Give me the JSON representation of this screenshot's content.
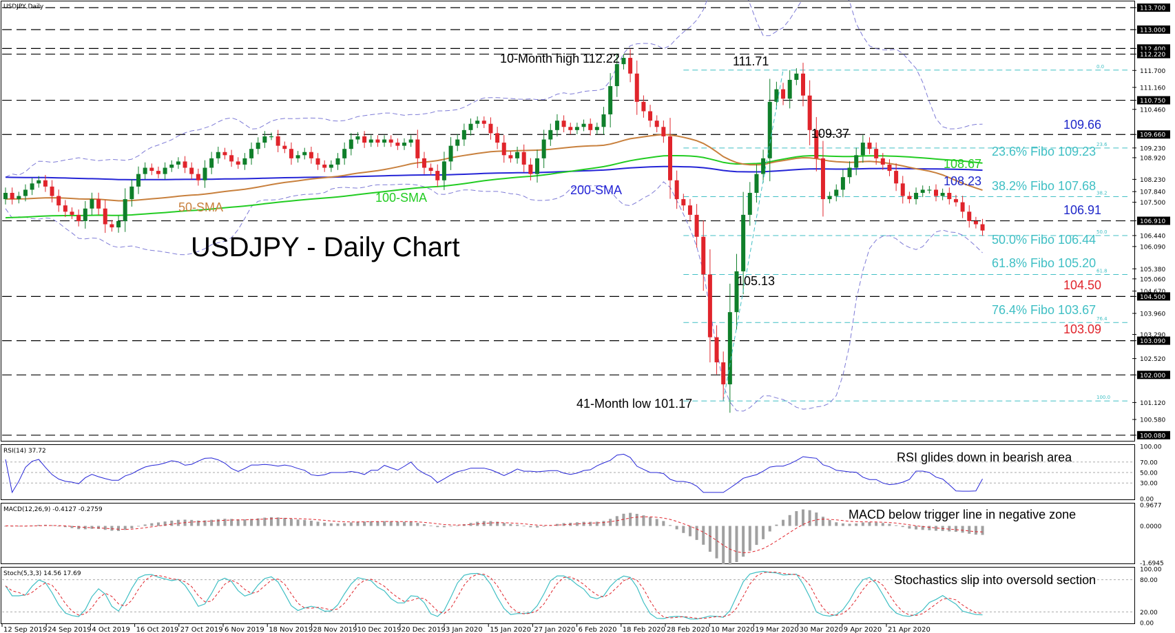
{
  "window": {
    "main_label": "USDJPY,Daily",
    "rsi_label": "RSI(14) 37.72",
    "macd_label": "MACD(12,26,9) -0.4127 -0.2759",
    "stoch_label": "Stoch(5,3,3) 14.56 17.69"
  },
  "chart_data": {
    "type": "candlestick",
    "title": "USDJPY - Daily Chart",
    "symbol": "USDJPY",
    "timeframe": "Daily",
    "ylim": [
      99.9,
      113.9
    ],
    "x_tick_labels": [
      "12 Sep 2019",
      "24 Sep 2019",
      "4 Oct 2019",
      "16 Oct 2019",
      "27 Oct 2019",
      "6 Nov 2019",
      "18 Nov 2019",
      "28 Nov 2019",
      "10 Dec 2019",
      "20 Dec 2019",
      "3 Jan 2020",
      "15 Jan 2020",
      "27 Jan 2020",
      "6 Feb 2020",
      "18 Feb 2020",
      "28 Feb 2020",
      "10 Mar 2020",
      "19 Mar 2020",
      "30 Mar 2020",
      "9 Apr 2020",
      "21 Apr 2020"
    ],
    "y_tick_labels": [
      "113.700",
      "113.000",
      "112.400",
      "112.220",
      "111.700",
      "111.160",
      "110.750",
      "110.460",
      "109.660",
      "109.230",
      "108.920",
      "108.230",
      "107.840",
      "107.500",
      "106.910",
      "106.440",
      "106.090",
      "105.380",
      "105.060",
      "104.670",
      "104.500",
      "103.960",
      "103.290",
      "103.090",
      "102.520",
      "102.000",
      "101.120",
      "100.580",
      "100.080"
    ],
    "y_tick_values": [
      113.7,
      113.0,
      112.4,
      112.22,
      111.7,
      111.16,
      110.75,
      110.46,
      109.66,
      109.23,
      108.92,
      108.23,
      107.84,
      107.5,
      106.91,
      106.44,
      106.09,
      105.38,
      105.06,
      104.67,
      104.5,
      103.96,
      103.29,
      103.09,
      102.52,
      102.0,
      101.12,
      100.58,
      100.08
    ],
    "y_tick_boxed": [
      "113.700",
      "113.000",
      "112.400",
      "112.220",
      "110.750",
      "109.660",
      "106.910",
      "104.500",
      "103.090",
      "102.000",
      "100.080"
    ],
    "horizontal_levels": [
      113.7,
      113.0,
      112.4,
      112.22,
      110.75,
      109.66,
      106.91,
      104.5,
      103.09,
      102.0,
      100.08
    ],
    "fibonacci": {
      "high": 111.71,
      "low": 101.17,
      "levels": [
        {
          "ratio": "0.0",
          "price": 111.71
        },
        {
          "ratio": "23.6",
          "price": 109.23
        },
        {
          "ratio": "38.2",
          "price": 107.68
        },
        {
          "ratio": "50.0",
          "price": 106.44
        },
        {
          "ratio": "61.8",
          "price": 105.2
        },
        {
          "ratio": "76.4",
          "price": 103.67
        },
        {
          "ratio": "100.0",
          "price": 101.17
        }
      ]
    },
    "closes": [
      107.8,
      107.6,
      107.7,
      107.9,
      108.1,
      108.2,
      108.0,
      107.7,
      107.4,
      107.2,
      107.1,
      106.9,
      107.3,
      107.6,
      107.3,
      106.8,
      106.7,
      106.9,
      107.6,
      108.0,
      108.4,
      108.6,
      108.5,
      108.4,
      108.6,
      108.7,
      108.8,
      108.6,
      108.4,
      108.2,
      108.6,
      108.9,
      109.1,
      109.0,
      108.8,
      108.7,
      108.9,
      109.2,
      109.4,
      109.6,
      109.6,
      109.3,
      109.2,
      108.9,
      109.0,
      109.1,
      108.9,
      108.7,
      108.6,
      108.7,
      108.9,
      109.2,
      109.5,
      109.6,
      109.4,
      109.5,
      109.4,
      109.5,
      109.4,
      109.3,
      109.4,
      109.5,
      108.9,
      108.6,
      108.5,
      108.2,
      108.8,
      109.3,
      109.5,
      109.8,
      110.0,
      110.1,
      110.0,
      109.7,
      109.4,
      109.0,
      108.9,
      109.1,
      108.7,
      108.4,
      108.9,
      109.5,
      109.8,
      110.1,
      109.9,
      109.8,
      109.9,
      110.0,
      109.8,
      109.9,
      110.3,
      111.2,
      111.9,
      112.1,
      111.6,
      110.7,
      110.4,
      110.1,
      109.9,
      109.6,
      108.2,
      107.6,
      107.4,
      107.1,
      106.4,
      105.2,
      103.2,
      102.4,
      101.7,
      104.0,
      105.3,
      107.1,
      107.8,
      108.4,
      108.9,
      110.7,
      111.1,
      110.8,
      111.4,
      111.6,
      110.9,
      109.8,
      108.9,
      107.6,
      107.7,
      107.9,
      108.3,
      108.6,
      109.0,
      109.4,
      109.2,
      108.9,
      108.7,
      108.5,
      108.1,
      107.7,
      107.6,
      107.8,
      107.9,
      107.9,
      107.7,
      107.8,
      107.6,
      107.5,
      107.2,
      106.9,
      106.8,
      106.6
    ]
  },
  "moving_averages": [
    {
      "name": "50-SMA",
      "color": "#c8803d",
      "label": "50-SMA",
      "value_label": ""
    },
    {
      "name": "100-SMA",
      "color": "#22cc22",
      "label": "100-SMA",
      "value_label": "108.67"
    },
    {
      "name": "200-SMA",
      "color": "#2424d6",
      "label": "200-SMA",
      "value_label": "108.23"
    }
  ],
  "annotations": {
    "title": "USDJPY - Daily Chart",
    "high_10m": "10-Month high 112.22",
    "peak": "111.71",
    "swing": "109.37",
    "trough": "105.13",
    "low_41m": "41-Month low 101.17",
    "lvl_10966": "109.66",
    "fibo_236": "23.6% Fibo 109.23",
    "fibo_382": "38.2% Fibo 107.68",
    "lvl_10691": "106.91",
    "fibo_500": "50.0% Fibo 106.44",
    "fibo_618": "61.8% Fibo 105.20",
    "lvl_10450": "104.50",
    "fibo_764": "76.4% Fibo 103.67",
    "lvl_10309": "103.09"
  },
  "rsi": {
    "ticks": [
      "100.00",
      "70.00",
      "50.00",
      "30.00",
      "0.00"
    ],
    "tick_values": [
      100,
      70,
      50,
      30,
      0
    ],
    "last": 37.72,
    "annotation": "RSI glides down in bearish area",
    "color": "#2424d6"
  },
  "macd": {
    "ticks": [
      "0.9677",
      "0.0000",
      "-1.6945"
    ],
    "tick_values": [
      0.9677,
      0,
      -1.6945
    ],
    "main": -0.4127,
    "signal": -0.2759,
    "annotation": "MACD below trigger line in negative zone"
  },
  "stoch": {
    "ticks": [
      "100.00",
      "80.00",
      "20.00",
      "0.00"
    ],
    "tick_values": [
      100,
      80,
      20,
      0
    ],
    "k_last": 14.56,
    "d_last": 17.69,
    "annotation": "Stochastics slip into oversold section"
  },
  "colors": {
    "up": "#0f7f2a",
    "down": "#e0242b",
    "fibo": "#3fbfc4",
    "blue_label": "#1f28c9",
    "green_label": "#22cc22",
    "red_label": "#e0242b",
    "bollinger": "#7d7ad6",
    "sma50": "#c8803d",
    "sma100": "#22cc22",
    "sma200": "#2424d6"
  }
}
